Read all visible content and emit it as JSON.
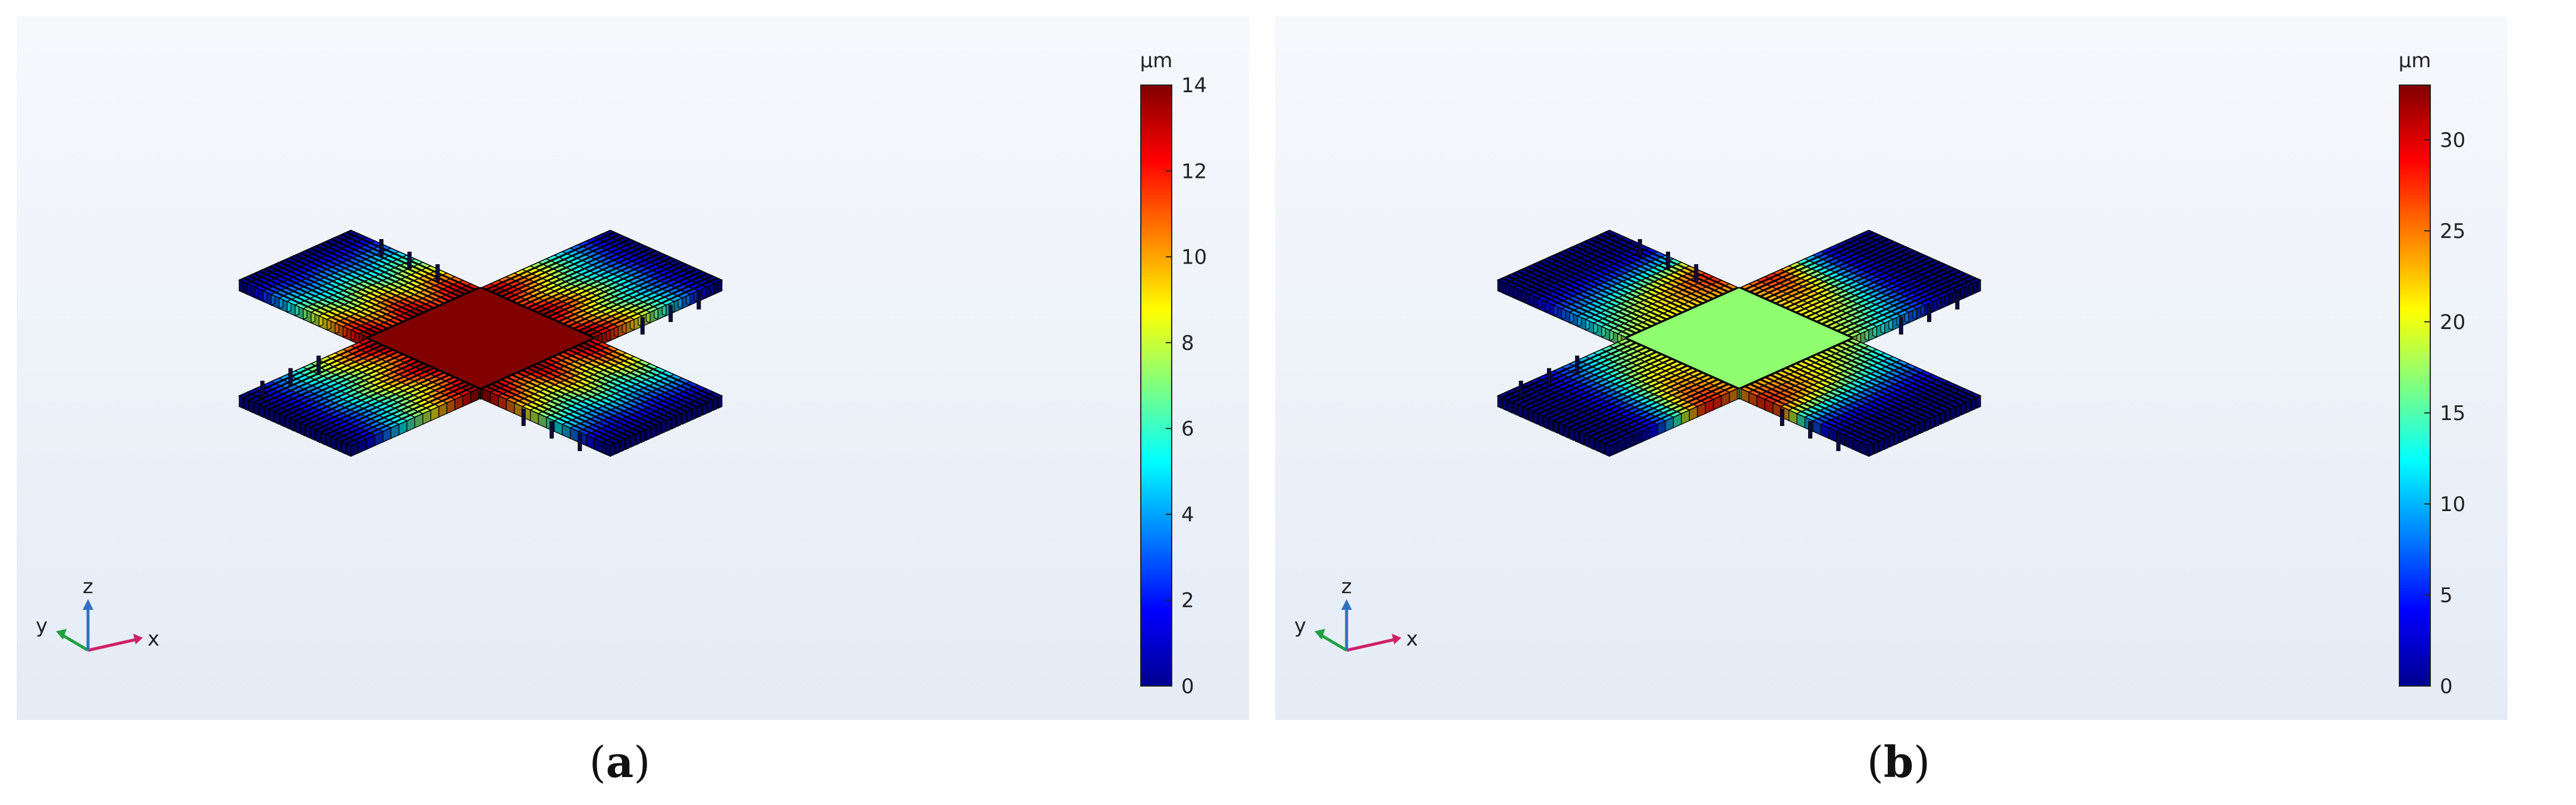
{
  "panels": [
    {
      "id": "a",
      "caption": "a",
      "colorbar": {
        "unit": "μm",
        "min": 0,
        "max": 14,
        "ticks": [
          "0",
          "2",
          "4",
          "6",
          "8",
          "10",
          "12",
          "14"
        ]
      },
      "axes": {
        "x": "x",
        "y": "y",
        "z": "z"
      },
      "center_plate_value": 14
    },
    {
      "id": "b",
      "caption": "b",
      "colorbar": {
        "unit": "μm",
        "min": 0,
        "max": 33,
        "ticks": [
          "0",
          "5",
          "10",
          "15",
          "20",
          "25",
          "30"
        ]
      },
      "axes": {
        "x": "x",
        "y": "y",
        "z": "z"
      },
      "center_plate_value": 17
    }
  ],
  "colors": {
    "scale": [
      "#00008f",
      "#0000ff",
      "#0080ff",
      "#00ffff",
      "#80ff80",
      "#ffff00",
      "#ff8000",
      "#ff0000",
      "#800000"
    ],
    "axis_x": "#d0206a",
    "axis_y": "#20a040",
    "axis_z": "#3070c0"
  }
}
